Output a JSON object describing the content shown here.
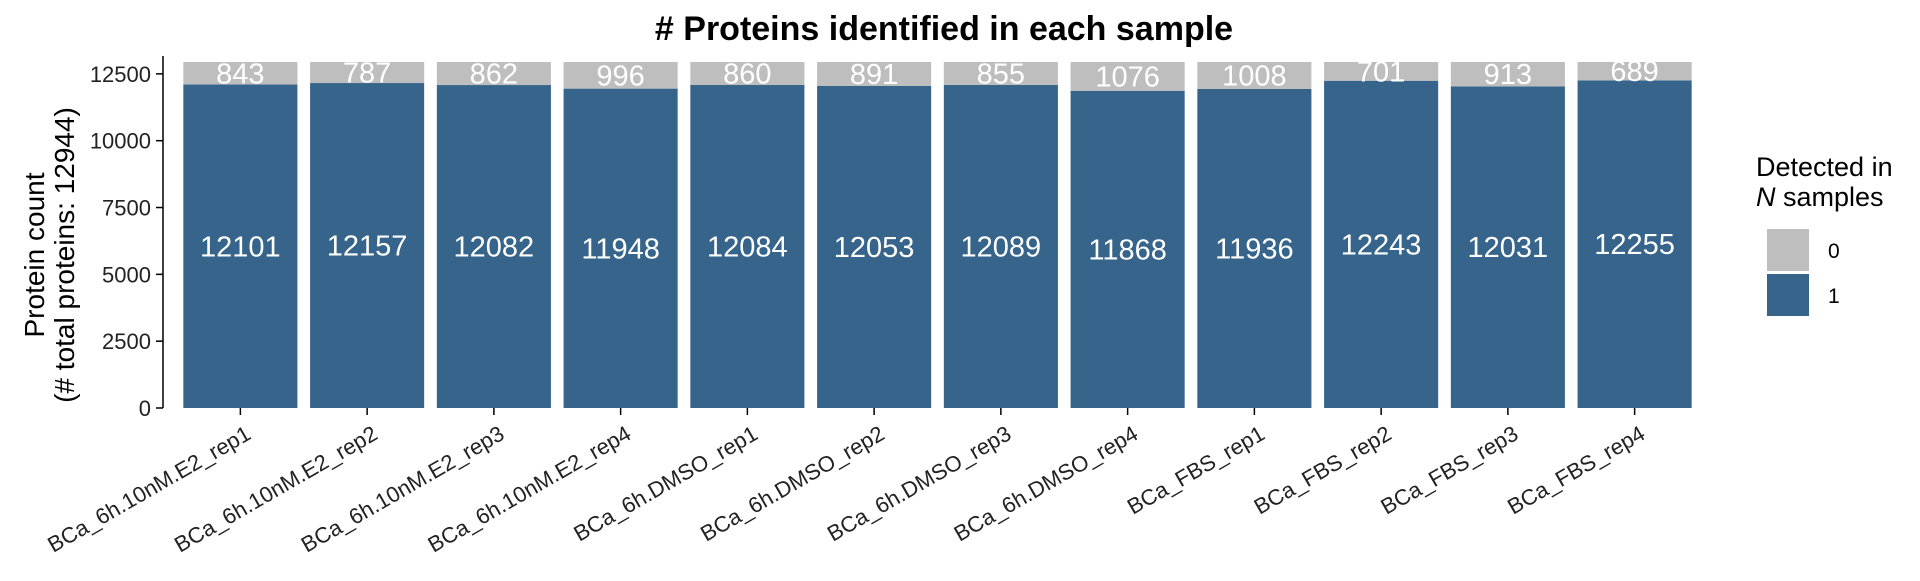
{
  "chart_data": {
    "type": "bar",
    "stacked": true,
    "title": "# Proteins identified in each sample",
    "ylabel_line1": "Protein count",
    "ylabel_line2": "(# total proteins: 12944)",
    "xlabel": "",
    "ylim": [
      0,
      12944
    ],
    "yticks": [
      0,
      2500,
      5000,
      7500,
      10000,
      12500
    ],
    "categories": [
      "BCa_6h.10nM.E2_rep1",
      "BCa_6h.10nM.E2_rep2",
      "BCa_6h.10nM.E2_rep3",
      "BCa_6h.10nM.E2_rep4",
      "BCa_6h.DMSO_rep1",
      "BCa_6h.DMSO_rep2",
      "BCa_6h.DMSO_rep3",
      "BCa_6h.DMSO_rep4",
      "BCa_FBS_rep1",
      "BCa_FBS_rep2",
      "BCa_FBS_rep3",
      "BCa_FBS_rep4"
    ],
    "series": [
      {
        "name": "1",
        "color": "#36648b",
        "values": [
          12101,
          12157,
          12082,
          11948,
          12084,
          12053,
          12089,
          11868,
          11936,
          12243,
          12031,
          12255
        ]
      },
      {
        "name": "0",
        "color": "#bebebe",
        "values": [
          843,
          787,
          862,
          996,
          860,
          891,
          855,
          1076,
          1008,
          701,
          913,
          689
        ]
      }
    ],
    "legend": {
      "title_line1": "Detected in",
      "title_italic": "N",
      "title_rest": " samples",
      "position": "right",
      "items": [
        {
          "label": "0",
          "color": "#bebebe"
        },
        {
          "label": "1",
          "color": "#36648b"
        }
      ]
    },
    "grid": false
  }
}
